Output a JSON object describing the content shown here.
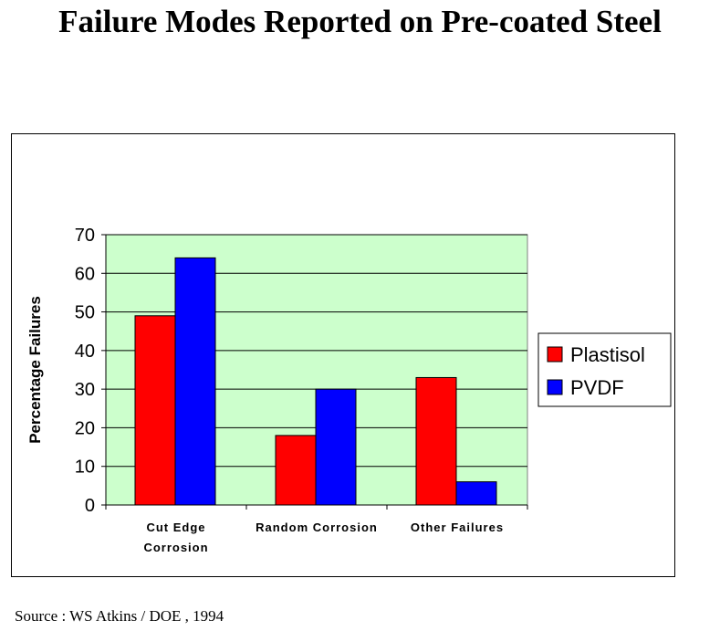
{
  "page": {
    "title": "Failure Modes Reported on Pre-coated Steel",
    "source": "Source : WS Atkins / DOE , 1994"
  },
  "chart_data": {
    "type": "bar",
    "categories": [
      [
        "Cut Edge",
        "Corrosion"
      ],
      [
        "Random Corrosion"
      ],
      [
        "Other Failures"
      ]
    ],
    "series": [
      {
        "name": "Plastisol",
        "color": "#ff0000",
        "values": [
          49,
          18,
          33
        ]
      },
      {
        "name": "PVDF",
        "color": "#0000ff",
        "values": [
          64,
          30,
          6
        ]
      }
    ],
    "ylabel": "Percentage Failures",
    "ylim": [
      0,
      70
    ],
    "yticks": [
      0,
      10,
      20,
      30,
      40,
      50,
      60,
      70
    ],
    "grid": true,
    "plot_background": "#ccffcc",
    "legend": "right"
  }
}
